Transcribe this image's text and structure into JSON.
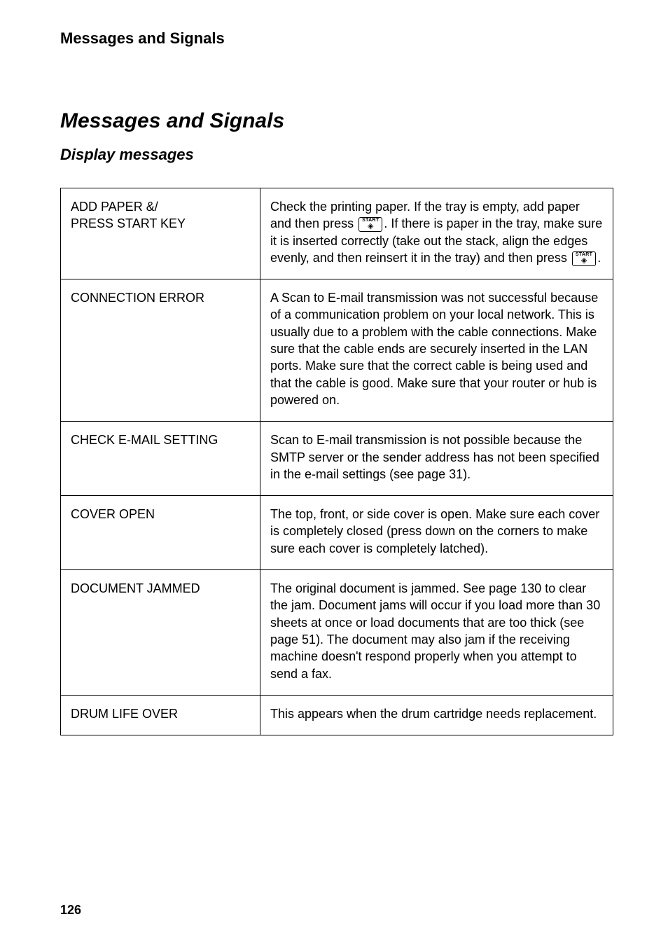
{
  "running_header": "Messages and Signals",
  "main_title": "Messages and Signals",
  "sub_title": "Display messages",
  "page_number": "126",
  "fonts": {
    "running_header_size": 22,
    "main_title_size": 30,
    "sub_title_size": 22,
    "body_size": 18,
    "page_number_size": 18
  },
  "key_button": {
    "label_top": "START",
    "glyph": "◈"
  },
  "table": {
    "rows": [
      {
        "code": "ADD PAPER &/\nPRESS START KEY",
        "desc_pre": "Check the printing paper. If the tray is empty, add paper and then press ",
        "insert_key_1": true,
        "desc_mid": ". If there is paper in the tray, make sure it is inserted correctly (take out the stack, align the edges evenly, and then reinsert it in the tray) and then press ",
        "insert_key_2": true,
        "desc_post": "."
      },
      {
        "code": "CONNECTION ERROR",
        "desc": "A Scan to E-mail transmission was not successful because of a communication problem on your local network. This is usually due to a problem with the cable connections. Make sure that the cable ends are securely inserted in the LAN ports. Make sure that the correct cable is being used and that the cable is good. Make sure that your router or hub is powered on."
      },
      {
        "code": "CHECK E-MAIL SETTING",
        "desc": "Scan to E-mail transmission is not possible because the SMTP server or the sender address has not been specified in the e-mail settings (see page 31)."
      },
      {
        "code": "COVER OPEN",
        "desc": "The top, front, or side cover is open. Make sure each cover is completely closed (press down on the corners to make sure each cover is completely latched)."
      },
      {
        "code": "DOCUMENT JAMMED",
        "desc": "The original document is jammed. See page 130 to clear the jam. Document jams will occur if you load more than 30 sheets at once or load documents that are too thick (see page 51). The document may also jam if the receiving machine doesn't respond properly when you attempt to send a fax."
      },
      {
        "code": "DRUM LIFE OVER",
        "desc": "This appears when the drum cartridge needs replacement."
      }
    ]
  }
}
